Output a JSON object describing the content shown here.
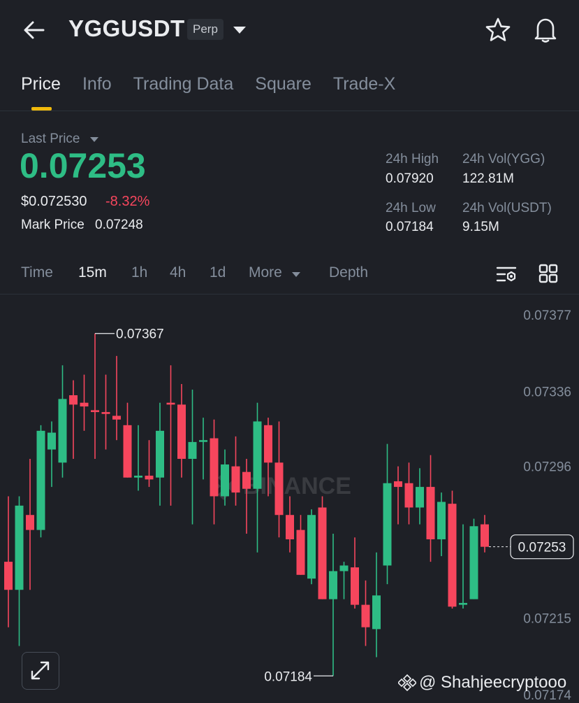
{
  "header": {
    "symbol": "YGGUSDT",
    "contract_type": "Perp"
  },
  "tabs": [
    {
      "label": "Price",
      "active": true
    },
    {
      "label": "Info"
    },
    {
      "label": "Trading Data"
    },
    {
      "label": "Square"
    },
    {
      "label": "Trade-X"
    }
  ],
  "price_panel": {
    "last_price_label": "Last Price",
    "last_price": "0.07253",
    "usd_price": "$0.072530",
    "change_pct": "-8.32%",
    "mark_price_label": "Mark Price",
    "mark_price": "0.07248"
  },
  "stats": {
    "high_label": "24h High",
    "high": "0.07920",
    "vol_base_label": "24h Vol(YGG)",
    "vol_base": "122.81M",
    "low_label": "24h Low",
    "low": "0.07184",
    "vol_quote_label": "24h Vol(USDT)",
    "vol_quote": "9.15M"
  },
  "timeframes": {
    "time": "Time",
    "m15": "15m",
    "h1": "1h",
    "h4": "4h",
    "d1": "1d",
    "more": "More",
    "depth": "Depth",
    "active": "15m"
  },
  "chart_axis": {
    "labels": [
      "0.07377",
      "0.07336",
      "0.07296",
      "0.07255",
      "0.07215",
      "0.07174"
    ]
  },
  "chart_annotations": {
    "high_marker": "0.07367",
    "low_marker": "0.07184",
    "current_price": "0.07253"
  },
  "watermark": "BINANCE",
  "credit": "@ Shahjeecryptooo",
  "colors": {
    "up": "#2ebd85",
    "down": "#f6465d",
    "accent": "#f0b90b",
    "bg": "#1e2026"
  },
  "icons": [
    "back-arrow-icon",
    "dropdown-caret-icon",
    "star-icon",
    "bell-icon",
    "chart-settings-icon",
    "grid-layout-icon",
    "expand-icon",
    "binance-logo-icon"
  ],
  "chart_data": {
    "type": "candlestick",
    "interval": "15m",
    "y_range": [
      0.07174,
      0.07377
    ],
    "candles": [
      {
        "o": 0.07245,
        "h": 0.0728,
        "l": 0.0721,
        "c": 0.0723
      },
      {
        "o": 0.0723,
        "h": 0.0728,
        "l": 0.072,
        "c": 0.07275
      },
      {
        "o": 0.0727,
        "h": 0.073,
        "l": 0.0723,
        "c": 0.07262
      },
      {
        "o": 0.07262,
        "h": 0.07318,
        "l": 0.07258,
        "c": 0.07315
      },
      {
        "o": 0.07305,
        "h": 0.0732,
        "l": 0.07285,
        "c": 0.07314
      },
      {
        "o": 0.07298,
        "h": 0.0735,
        "l": 0.0729,
        "c": 0.07332
      },
      {
        "o": 0.07334,
        "h": 0.07342,
        "l": 0.073,
        "c": 0.07329
      },
      {
        "o": 0.0733,
        "h": 0.07345,
        "l": 0.07315,
        "c": 0.07328
      },
      {
        "o": 0.07326,
        "h": 0.07367,
        "l": 0.073,
        "c": 0.07325
      },
      {
        "o": 0.07325,
        "h": 0.07345,
        "l": 0.07305,
        "c": 0.07324
      },
      {
        "o": 0.07323,
        "h": 0.07355,
        "l": 0.0731,
        "c": 0.07321
      },
      {
        "o": 0.07318,
        "h": 0.0733,
        "l": 0.0729,
        "c": 0.0729
      },
      {
        "o": 0.0729,
        "h": 0.07318,
        "l": 0.07283,
        "c": 0.07291
      },
      {
        "o": 0.07291,
        "h": 0.0731,
        "l": 0.07285,
        "c": 0.07289
      },
      {
        "o": 0.0729,
        "h": 0.0733,
        "l": 0.07275,
        "c": 0.07315
      },
      {
        "o": 0.0733,
        "h": 0.0735,
        "l": 0.07275,
        "c": 0.07329
      },
      {
        "o": 0.07329,
        "h": 0.0734,
        "l": 0.0729,
        "c": 0.073
      },
      {
        "o": 0.073,
        "h": 0.07337,
        "l": 0.07265,
        "c": 0.07309
      },
      {
        "o": 0.0731,
        "h": 0.07322,
        "l": 0.07289,
        "c": 0.0731
      },
      {
        "o": 0.07311,
        "h": 0.07321,
        "l": 0.07265,
        "c": 0.0728
      },
      {
        "o": 0.0728,
        "h": 0.07305,
        "l": 0.07275,
        "c": 0.07297
      },
      {
        "o": 0.07296,
        "h": 0.07312,
        "l": 0.07275,
        "c": 0.07282
      },
      {
        "o": 0.07293,
        "h": 0.073,
        "l": 0.0726,
        "c": 0.07284
      },
      {
        "o": 0.07284,
        "h": 0.0733,
        "l": 0.0725,
        "c": 0.0732
      },
      {
        "o": 0.07318,
        "h": 0.07322,
        "l": 0.0728,
        "c": 0.07298
      },
      {
        "o": 0.07298,
        "h": 0.0732,
        "l": 0.07258,
        "c": 0.0727
      },
      {
        "o": 0.0727,
        "h": 0.0728,
        "l": 0.0725,
        "c": 0.07257
      },
      {
        "o": 0.07262,
        "h": 0.0727,
        "l": 0.07238,
        "c": 0.07238
      },
      {
        "o": 0.07236,
        "h": 0.07273,
        "l": 0.07233,
        "c": 0.0727
      },
      {
        "o": 0.07274,
        "h": 0.0728,
        "l": 0.07225,
        "c": 0.07225
      },
      {
        "o": 0.07225,
        "h": 0.0726,
        "l": 0.07184,
        "c": 0.0724
      },
      {
        "o": 0.0724,
        "h": 0.07245,
        "l": 0.07225,
        "c": 0.07243
      },
      {
        "o": 0.07242,
        "h": 0.07258,
        "l": 0.0722,
        "c": 0.07222
      },
      {
        "o": 0.07222,
        "h": 0.07235,
        "l": 0.072,
        "c": 0.0721
      },
      {
        "o": 0.07209,
        "h": 0.0725,
        "l": 0.07194,
        "c": 0.07227
      },
      {
        "o": 0.07243,
        "h": 0.07308,
        "l": 0.07233,
        "c": 0.07287
      },
      {
        "o": 0.07288,
        "h": 0.07296,
        "l": 0.07265,
        "c": 0.07285
      },
      {
        "o": 0.07287,
        "h": 0.07298,
        "l": 0.07265,
        "c": 0.07274
      },
      {
        "o": 0.07274,
        "h": 0.07295,
        "l": 0.07265,
        "c": 0.07285
      },
      {
        "o": 0.07285,
        "h": 0.07302,
        "l": 0.07245,
        "c": 0.07257
      },
      {
        "o": 0.07257,
        "h": 0.07282,
        "l": 0.07248,
        "c": 0.07277
      },
      {
        "o": 0.07276,
        "h": 0.07283,
        "l": 0.0722,
        "c": 0.07221
      },
      {
        "o": 0.07222,
        "h": 0.07265,
        "l": 0.0722,
        "c": 0.07223
      },
      {
        "o": 0.07225,
        "h": 0.07268,
        "l": 0.07225,
        "c": 0.07264
      },
      {
        "o": 0.07265,
        "h": 0.0727,
        "l": 0.0725,
        "c": 0.07253
      }
    ]
  }
}
